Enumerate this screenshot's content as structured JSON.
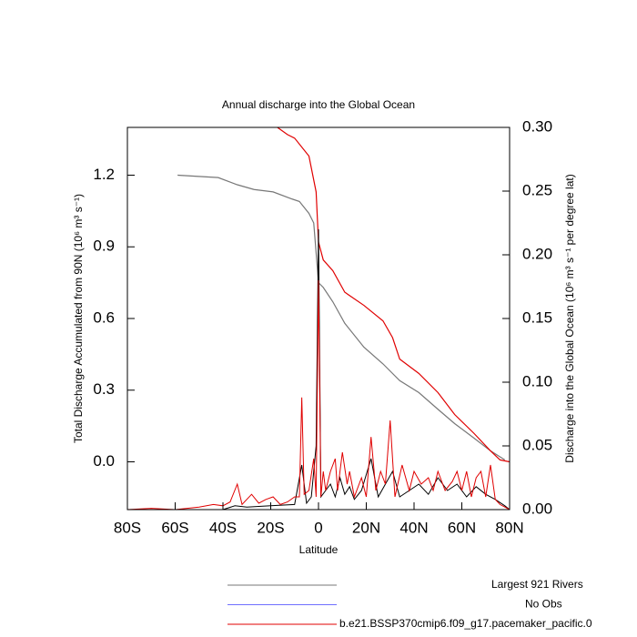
{
  "chart_data": {
    "type": "line",
    "title": "Annual discharge into the Global Ocean",
    "xlabel": "Latitude",
    "ylabel": "Total Discharge Accumulated from 90N (10⁶ m³ s⁻¹)",
    "y2label": "Discharge into the Global Ocean (10⁶ m³ s⁻¹ per degree lat)",
    "xlim": [
      -80,
      80
    ],
    "xticks": [
      {
        "value": -80,
        "label": "80S"
      },
      {
        "value": -60,
        "label": "60S"
      },
      {
        "value": -40,
        "label": "40S"
      },
      {
        "value": -20,
        "label": "20S"
      },
      0,
      {
        "value": 20,
        "label": "20N"
      },
      {
        "value": 40,
        "label": "40N"
      },
      {
        "value": 60,
        "label": "60N"
      },
      {
        "value": 80,
        "label": "80N"
      }
    ],
    "ylim": [
      -0.2,
      1.4
    ],
    "yticks": [
      {
        "value": 0,
        "label": "0.0"
      },
      0.3,
      0.6,
      0.9,
      1.2
    ],
    "y2lim": [
      0,
      0.3
    ],
    "y2ticks": [
      {
        "value": 0,
        "label": "0.00"
      },
      0.05,
      {
        "value": 0.1,
        "label": "0.10"
      },
      0.15,
      {
        "value": 0.2,
        "label": "0.20"
      },
      0.25,
      {
        "value": 0.3,
        "label": "0.30"
      }
    ],
    "series": [
      {
        "name": "Largest 921 Rivers",
        "color": "#777777",
        "x": [
          -59,
          -42,
          -34,
          -27,
          -19,
          -11,
          -8,
          -4,
          -2,
          0,
          2,
          6,
          11,
          19,
          27,
          34,
          42,
          50,
          57,
          65,
          72,
          78
        ],
        "values": [
          1.2,
          1.19,
          1.16,
          1.14,
          1.13,
          1.1,
          1.09,
          1.04,
          1.0,
          0.75,
          0.73,
          0.67,
          0.58,
          0.48,
          0.41,
          0.34,
          0.29,
          0.22,
          0.16,
          0.1,
          0.046,
          0.008
        ]
      },
      {
        "name": "No Obs",
        "color": "#6f6fff",
        "x": [],
        "values": []
      },
      {
        "name": "b.e21.BSSP370cmip6.f09_g17.pacemaker_pacific.0",
        "color": "#e00000",
        "x": [
          -20,
          -13,
          -10,
          -4,
          -1,
          0,
          2,
          6,
          11,
          19,
          27,
          31,
          34,
          42,
          50,
          57,
          65,
          72,
          76,
          80
        ],
        "values": [
          1.42,
          1.37,
          1.355,
          1.28,
          1.13,
          0.92,
          0.845,
          0.8,
          0.71,
          0.655,
          0.59,
          0.52,
          0.43,
          0.37,
          0.29,
          0.198,
          0.12,
          0.046,
          0.008,
          0.0
        ]
      },
      {
        "color": "#000000",
        "axis": "y2",
        "x": [
          -80,
          -60,
          -40,
          -35,
          -30,
          -20,
          -10,
          -7,
          -5,
          -3,
          -1,
          0,
          1,
          3,
          5,
          7,
          9,
          11,
          13,
          15,
          18,
          22,
          25,
          28,
          31,
          34,
          38,
          42,
          46,
          50,
          54,
          58,
          62,
          66,
          70,
          74,
          78,
          80
        ],
        "values": [
          0,
          0,
          0,
          0.003,
          0.002,
          0.003,
          0.004,
          0.035,
          0.005,
          0.01,
          0.05,
          0.22,
          0.01,
          0.015,
          0.02,
          0.01,
          0.025,
          0.012,
          0.018,
          0.008,
          0.015,
          0.04,
          0.01,
          0.02,
          0.03,
          0.01,
          0.015,
          0.02,
          0.012,
          0.025,
          0.015,
          0.02,
          0.01,
          0.018,
          0.012,
          0.008,
          0.003,
          0
        ]
      },
      {
        "color": "#e00000",
        "axis": "y2",
        "x": [
          -80,
          -70,
          -60,
          -50,
          -44,
          -40,
          -37,
          -34,
          -32,
          -28,
          -25,
          -22,
          -19,
          -16,
          -13,
          -10,
          -8,
          -7,
          -6,
          -4,
          -2,
          -1,
          0,
          1,
          2,
          3,
          5,
          7,
          8,
          10,
          12,
          13,
          15,
          18,
          20,
          22,
          24,
          26,
          28,
          30,
          32,
          35,
          38,
          40,
          43,
          46,
          48,
          50,
          53,
          56,
          58,
          60,
          62,
          64,
          66,
          68,
          70,
          72,
          74,
          76,
          80
        ],
        "values": [
          0,
          0.001,
          0,
          0.002,
          0.004,
          0.003,
          0.006,
          0.02,
          0.004,
          0.012,
          0.005,
          0.008,
          0.01,
          0.004,
          0.006,
          0.01,
          0.01,
          0.088,
          0.012,
          0.015,
          0.04,
          0.01,
          0.18,
          0.01,
          0.03,
          0.015,
          0.03,
          0.04,
          0.015,
          0.045,
          0.02,
          0.03,
          0.01,
          0.025,
          0.01,
          0.057,
          0.015,
          0.03,
          0.02,
          0.07,
          0.01,
          0.035,
          0.015,
          0.03,
          0.02,
          0.025,
          0.015,
          0.03,
          0.015,
          0.022,
          0.03,
          0.015,
          0.03,
          0.01,
          0.025,
          0.03,
          0.01,
          0.035,
          0.008,
          0.004,
          0
        ]
      }
    ]
  }
}
